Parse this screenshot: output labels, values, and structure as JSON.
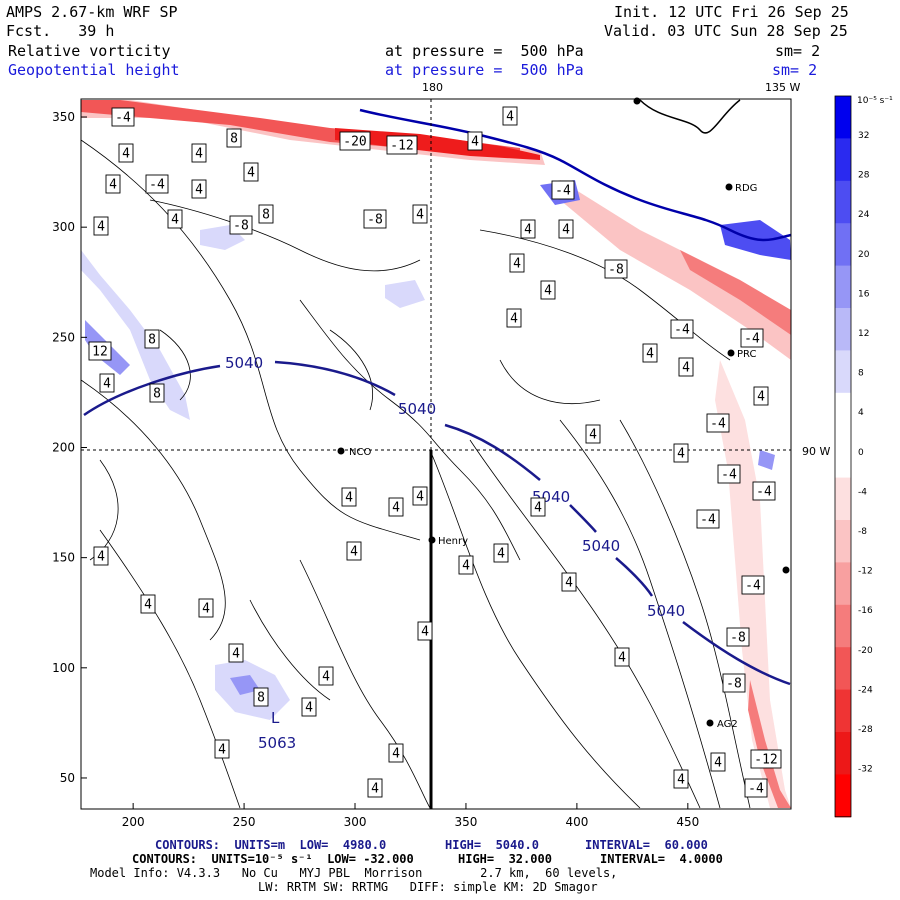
{
  "header": {
    "model": "AMPS 2.67-km WRF SP",
    "forecast": "Fcst.   39 h",
    "init": "Init. 12 UTC Fri 26 Sep 25",
    "valid": "Valid. 03 UTC Sun 28 Sep 25",
    "field1_name": "Relative vorticity",
    "field1_level": "at pressure =  500 hPa",
    "field1_smooth": "sm= 2",
    "field2_name": "Geopotential height",
    "field2_level": "at pressure =  500 hPa",
    "field2_smooth": "sm= 2"
  },
  "map": {
    "lon_label_top": "180",
    "lon_label_topright": "135 W",
    "lon_label_right": "90 W",
    "x_ticks": [
      "200",
      "250",
      "300",
      "350",
      "400",
      "450"
    ],
    "y_ticks": [
      "350",
      "300",
      "250",
      "200",
      "150",
      "100",
      "50"
    ],
    "stations": [
      {
        "label": "NCO"
      },
      {
        "label": "Henry"
      },
      {
        "label": "AG2"
      },
      {
        "label": "PRC"
      },
      {
        "label": "RDG"
      }
    ],
    "height_labels": [
      "5040",
      "5040",
      "5040",
      "5040",
      "5040",
      "5063"
    ],
    "low_symbol": "L",
    "vorticity_labels": [
      "-4",
      "-20",
      "-12",
      "4",
      "8",
      "4",
      "4",
      "4",
      "4",
      "-4",
      "4",
      "8",
      "4",
      "4",
      "4",
      "4",
      "4",
      "-8",
      "-8",
      "4",
      "4",
      "4",
      "-4",
      "12",
      "8",
      "4",
      "8",
      "-8",
      "4",
      "4",
      "4",
      "4",
      "-4",
      "-4",
      "-4",
      "4",
      "4",
      "4",
      "-4",
      "4",
      "4",
      "4",
      "4",
      "-4",
      "4",
      "4",
      "4",
      "4",
      "-4",
      "4",
      "4",
      "4",
      "-4",
      "4",
      "4",
      "8",
      "4",
      "-8",
      "4",
      "4",
      "-8",
      "4",
      "4",
      "-12",
      "4",
      "-4",
      "4",
      "4"
    ]
  },
  "colorbar": {
    "unit": "10⁻⁵ s⁻¹",
    "labels": [
      "32",
      "28",
      "24",
      "20",
      "16",
      "12",
      "8",
      "4",
      "0",
      "-4",
      "-8",
      "-12",
      "-16",
      "-20",
      "-24",
      "-28",
      "-32"
    ],
    "colors_top_to_bottom": [
      "#0000ee",
      "#2a2af0",
      "#4d4df2",
      "#7070f4",
      "#9696f6",
      "#b9b9f8",
      "#d9d9fb",
      "#ffffff",
      "#ffffff",
      "#fde0e0",
      "#fbc4c4",
      "#f8a0a0",
      "#f57c7c",
      "#f25656",
      "#ef3434",
      "#ed1818",
      "#ff0000"
    ]
  },
  "footer": {
    "line1_a": "CONTOURS:  UNITS=m  LOW=  4980.0",
    "line1_b": "HIGH=  5040.0",
    "line1_c": "INTERVAL=  60.000",
    "line2_a": "CONTOURS:  UNITS=10⁻⁵ s⁻¹  LOW= -32.000",
    "line2_b": "HIGH=  32.000",
    "line2_c": "INTERVAL=  4.0000",
    "line3": "Model Info: V4.3.3   No Cu   MYJ PBL  Morrison        2.7 km,  60 levels,",
    "line4": "LW: RRTM SW: RRTMG   DIFF: simple KM: 2D Smagor"
  }
}
